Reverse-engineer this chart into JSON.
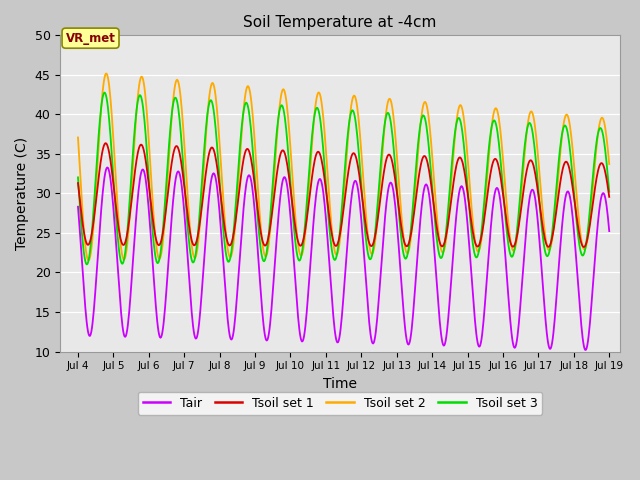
{
  "title": "Soil Temperature at -4cm",
  "xlabel": "Time",
  "ylabel": "Temperature (C)",
  "ylim": [
    10,
    50
  ],
  "xlim_days": [
    3.5,
    19.3
  ],
  "fig_bg_color": "#c8c8c8",
  "plot_bg_color": "#e8e8e8",
  "annotation_text": "VR_met",
  "annotation_bg": "#ffff99",
  "annotation_border": "#888800",
  "annotation_text_color": "#880000",
  "colors": {
    "Tair": "#cc00ff",
    "Tsoil1": "#dd0000",
    "Tsoil2": "#ffaa00",
    "Tsoil3": "#00dd00"
  },
  "legend_labels": [
    "Tair",
    "Tsoil set 1",
    "Tsoil set 2",
    "Tsoil set 3"
  ],
  "x_tick_positions": [
    4,
    5,
    6,
    7,
    8,
    9,
    10,
    11,
    12,
    13,
    14,
    15,
    16,
    17,
    18,
    19
  ],
  "x_tick_labels": [
    "Jul 4",
    "Jul 5",
    "Jul 6",
    "Jul 7",
    "Jul 8",
    "Jul 9",
    "Jul 10",
    "Jul 11",
    "Jul 12",
    "Jul 13",
    "Jul 14",
    "Jul 15",
    "Jul 16",
    "Jul 17",
    "Jul 18",
    "Jul 19"
  ],
  "y_ticks": [
    10,
    15,
    20,
    25,
    30,
    35,
    40,
    45,
    50
  ],
  "line_width": 1.3,
  "grid_color": "#ffffff",
  "figsize": [
    6.4,
    4.8
  ],
  "dpi": 100
}
